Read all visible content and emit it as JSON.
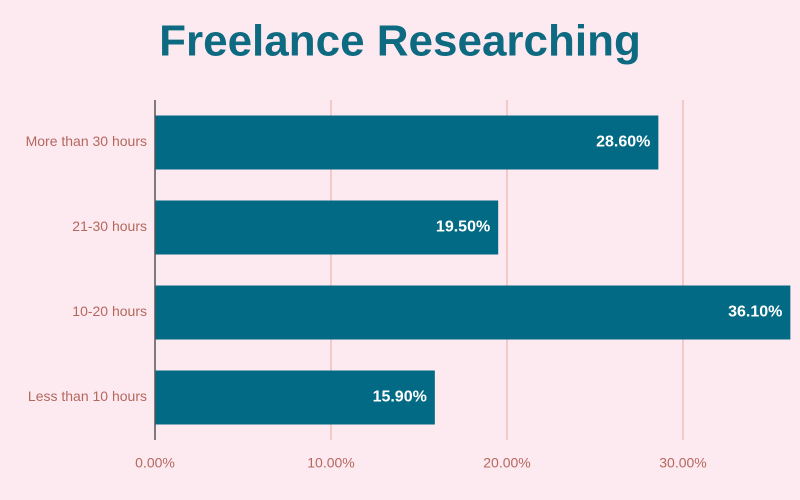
{
  "chart_data": {
    "type": "hbar",
    "title": "Freelance Researching",
    "categories": [
      "More than 30 hours",
      "21-30 hours",
      "10-20 hours",
      "Less than 10 hours"
    ],
    "values": [
      28.6,
      19.5,
      36.1,
      15.9
    ],
    "value_labels": [
      "28.60%",
      "19.50%",
      "36.10%",
      "15.90%"
    ],
    "color": "#036a85",
    "xlim": [
      0,
      36.5
    ],
    "xticks": [
      {
        "value": 0,
        "label": "0.00%"
      },
      {
        "value": 10,
        "label": "10.00%"
      },
      {
        "value": 20,
        "label": "20.00%"
      },
      {
        "value": 30,
        "label": "30.00%"
      }
    ],
    "grid": true
  }
}
